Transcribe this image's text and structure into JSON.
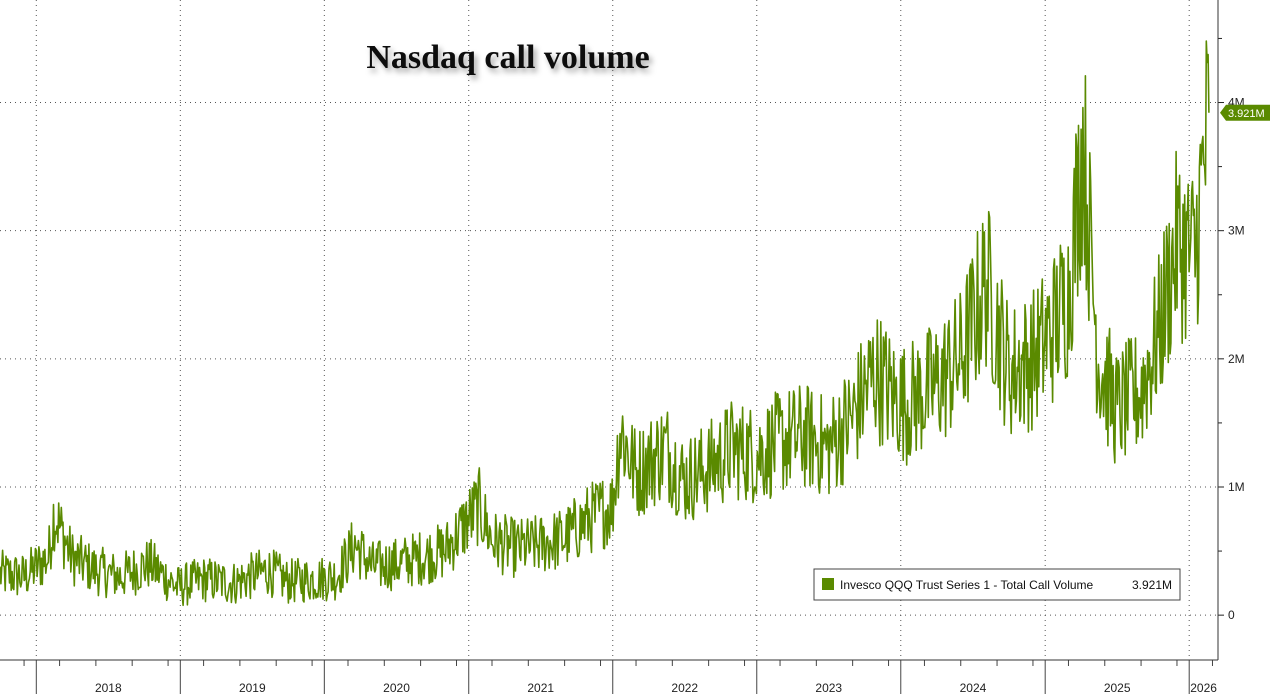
{
  "chart_data": {
    "type": "line",
    "title": "Nasdaq call volume",
    "xlabel": "",
    "ylabel": "",
    "x_tick_labels": [
      "2018",
      "2019",
      "2020",
      "2021",
      "2022",
      "2023",
      "2024",
      "2025",
      "2026"
    ],
    "y_tick_labels": [
      "0",
      "1M",
      "2M",
      "3M",
      "4M"
    ],
    "ylim": [
      -0.35,
      4.8
    ],
    "xlim": [
      "2017-10-01",
      "2026-03-15"
    ],
    "grid": true,
    "legend_position": "bottom-right",
    "series": [
      {
        "name": "Invesco QQQ Trust Series 1 - Total Call Volume",
        "color": "#5a8a00",
        "last_value_label": "3.921M",
        "x": [
          "2017-10-01",
          "2017-12-01",
          "2018-02-01",
          "2018-02-15",
          "2018-04-01",
          "2018-06-01",
          "2018-08-01",
          "2018-10-15",
          "2018-12-24",
          "2019-03-01",
          "2019-05-15",
          "2019-08-10",
          "2019-10-01",
          "2019-12-01",
          "2020-02-01",
          "2020-03-18",
          "2020-05-01",
          "2020-07-01",
          "2020-09-01",
          "2020-11-01",
          "2021-01-27",
          "2021-03-01",
          "2021-05-01",
          "2021-07-01",
          "2021-09-01",
          "2021-11-01",
          "2021-12-31",
          "2022-01-20",
          "2022-03-01",
          "2022-05-15",
          "2022-07-01",
          "2022-09-01",
          "2022-11-01",
          "2023-01-01",
          "2023-03-01",
          "2023-05-01",
          "2023-07-01",
          "2023-09-01",
          "2023-10-27",
          "2023-12-15",
          "2024-01-15",
          "2024-04-01",
          "2024-06-01",
          "2024-08-05",
          "2024-10-01",
          "2024-12-01",
          "2025-01-15",
          "2025-03-01",
          "2025-04-07",
          "2025-05-15",
          "2025-07-01",
          "2025-09-01",
          "2025-10-15",
          "2025-12-01",
          "2026-01-15",
          "2026-02-20"
        ],
        "values": [
          0.32,
          0.3,
          0.45,
          0.8,
          0.45,
          0.35,
          0.3,
          0.4,
          0.22,
          0.28,
          0.25,
          0.35,
          0.26,
          0.28,
          0.3,
          0.55,
          0.38,
          0.4,
          0.45,
          0.5,
          0.85,
          0.58,
          0.52,
          0.55,
          0.6,
          0.75,
          0.85,
          1.45,
          1.1,
          1.3,
          1.05,
          1.15,
          1.3,
          1.25,
          1.35,
          1.4,
          1.3,
          1.55,
          1.9,
          1.7,
          1.65,
          1.8,
          2.0,
          2.6,
          1.9,
          2.0,
          2.2,
          2.5,
          3.7,
          2.0,
          1.6,
          1.75,
          2.2,
          2.9,
          2.8,
          3.92
        ]
      }
    ]
  }
}
